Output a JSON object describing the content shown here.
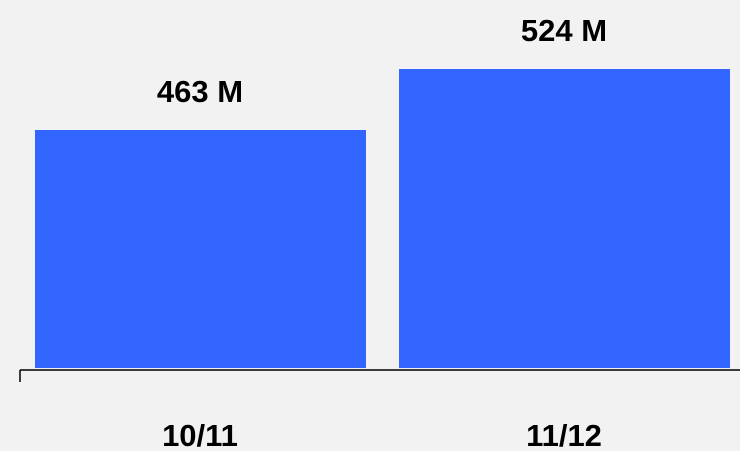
{
  "chart_data": {
    "type": "bar",
    "categories": [
      "10/11",
      "11/12"
    ],
    "values": [
      463,
      524
    ],
    "value_labels": [
      "463 M",
      "524 M"
    ],
    "color": "#3366ff",
    "ylim": [
      225,
      593
    ]
  }
}
